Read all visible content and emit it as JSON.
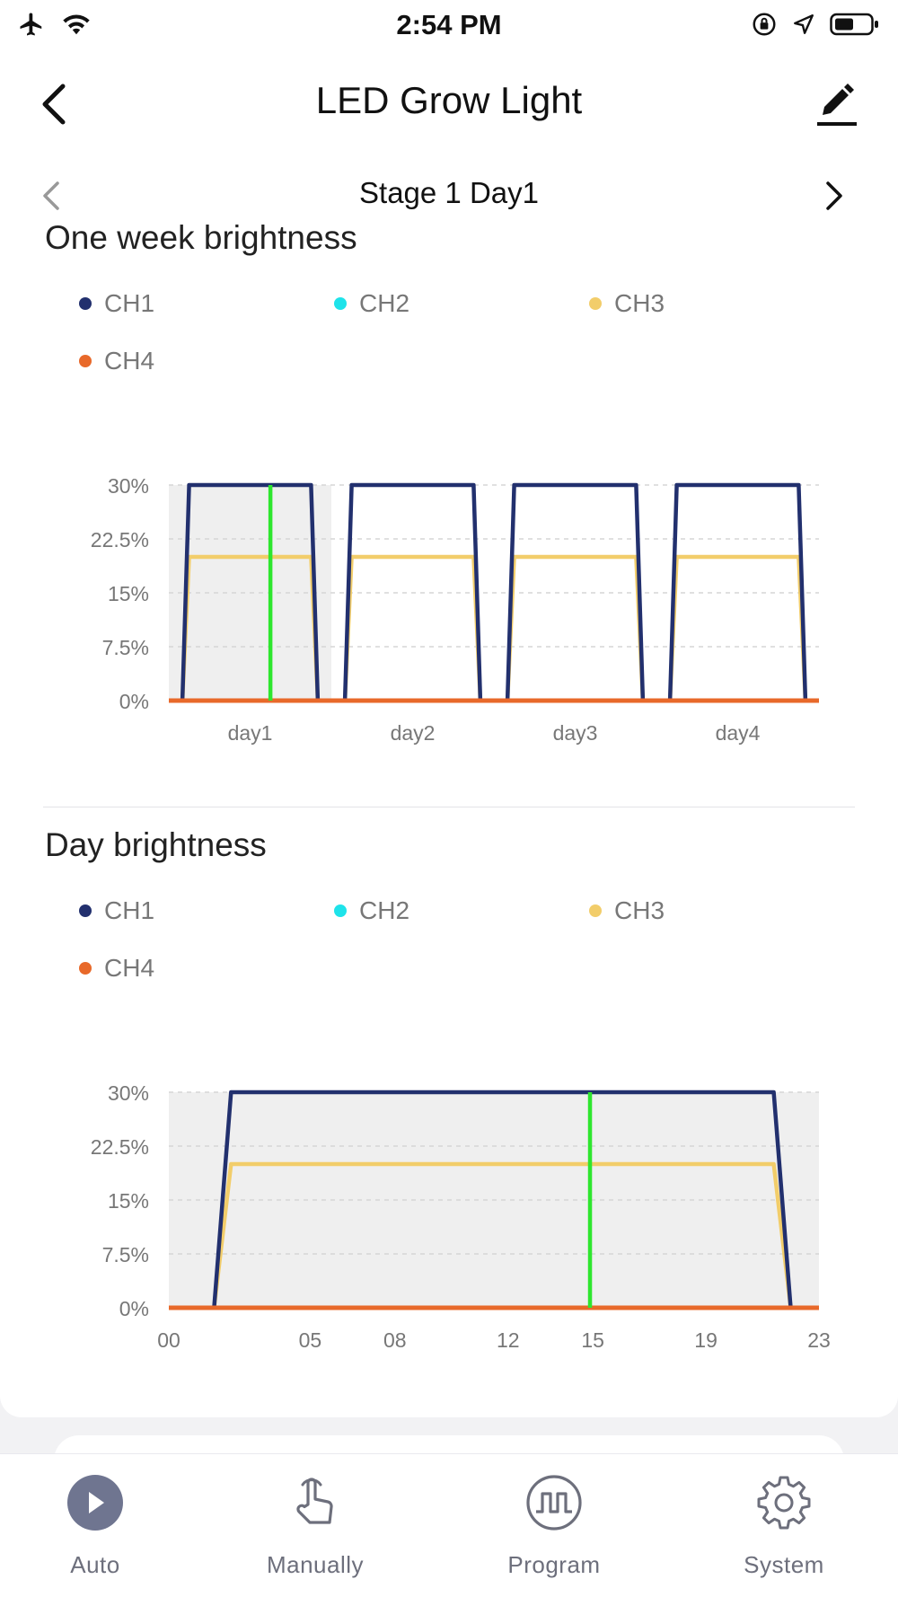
{
  "status_bar": {
    "time": "2:54 PM",
    "icons": [
      "airplane-icon",
      "wifi-icon",
      "orientation-lock-icon",
      "location-icon",
      "battery-icon"
    ]
  },
  "header": {
    "title": "LED Grow Light",
    "icons": [
      "back-chevron-icon",
      "edit-pencil-icon"
    ]
  },
  "stage": {
    "label": "Stage 1 Day1"
  },
  "colors": {
    "ch1": "#22306e",
    "ch2": "#1ee3ea",
    "ch3": "#f2cd6a",
    "ch4": "#e8692a",
    "marker": "#2ee62e",
    "plot_bg": "#efefef"
  },
  "week_section": {
    "title": "One week brightness",
    "legend": [
      "CH1",
      "CH2",
      "CH3",
      "CH4"
    ],
    "chart_data": {
      "type": "line",
      "title": "",
      "y_ticks": [
        "0%",
        "7.5%",
        "15%",
        "22.5%",
        "30%"
      ],
      "ylim": [
        0,
        30
      ],
      "x_ticks": [
        "day1",
        "day2",
        "day3",
        "day4"
      ],
      "xlim": [
        0,
        96
      ],
      "grid": true,
      "current_marker_x": 15,
      "highlighted_day": "day1",
      "series": [
        {
          "name": "CH1",
          "x": [
            0,
            2,
            3,
            21,
            22,
            24,
            26,
            27,
            45,
            46,
            48,
            50,
            51,
            69,
            70,
            72,
            74,
            75,
            93,
            94,
            96
          ],
          "y": [
            0,
            0,
            30,
            30,
            0,
            0,
            0,
            30,
            30,
            0,
            0,
            0,
            30,
            30,
            0,
            0,
            0,
            30,
            30,
            0,
            0
          ]
        },
        {
          "name": "CH2",
          "x": [
            0,
            96
          ],
          "y": [
            0,
            0
          ]
        },
        {
          "name": "CH3",
          "x": [
            0,
            2,
            3,
            21,
            22,
            24,
            26,
            27,
            45,
            46,
            48,
            50,
            51,
            69,
            70,
            72,
            74,
            75,
            93,
            94,
            96
          ],
          "y": [
            0,
            0,
            20,
            20,
            0,
            0,
            0,
            20,
            20,
            0,
            0,
            0,
            20,
            20,
            0,
            0,
            0,
            20,
            20,
            0,
            0
          ]
        },
        {
          "name": "CH4",
          "x": [
            0,
            96
          ],
          "y": [
            0,
            0
          ]
        }
      ]
    }
  },
  "day_section": {
    "title": "Day brightness",
    "legend": [
      "CH1",
      "CH2",
      "CH3",
      "CH4"
    ],
    "chart_data": {
      "type": "line",
      "title": "",
      "y_ticks": [
        "0%",
        "7.5%",
        "15%",
        "22.5%",
        "30%"
      ],
      "ylim": [
        0,
        30
      ],
      "x_ticks": [
        "00",
        "05",
        "08",
        "12",
        "15",
        "19",
        "23"
      ],
      "xlim": [
        0,
        23
      ],
      "grid": true,
      "current_marker_x": 14.9,
      "series": [
        {
          "name": "CH1",
          "x": [
            0,
            1.6,
            2.2,
            21.4,
            22,
            23
          ],
          "y": [
            0,
            0,
            30,
            30,
            0,
            0
          ]
        },
        {
          "name": "CH2",
          "x": [
            0,
            23
          ],
          "y": [
            0,
            0
          ]
        },
        {
          "name": "CH3",
          "x": [
            0,
            1.6,
            2.2,
            21.4,
            22,
            23
          ],
          "y": [
            0,
            0,
            20,
            20,
            0,
            0
          ]
        },
        {
          "name": "CH4",
          "x": [
            0,
            23
          ],
          "y": [
            0,
            0
          ]
        }
      ]
    }
  },
  "tabs": [
    {
      "label": "Auto",
      "icon": "play-circle-icon",
      "active": true
    },
    {
      "label": "Manually",
      "icon": "hand-pointer-icon",
      "active": false
    },
    {
      "label": "Program",
      "icon": "square-wave-icon",
      "active": false
    },
    {
      "label": "System",
      "icon": "gear-icon",
      "active": false
    }
  ]
}
